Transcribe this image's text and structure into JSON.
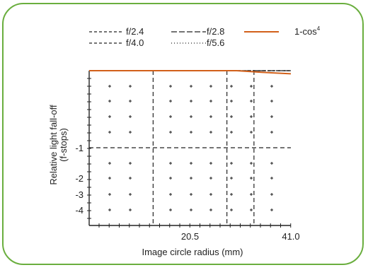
{
  "chart_data": {
    "type": "line",
    "title": "",
    "xlabel": "Image circle radius (mm)",
    "ylabel": "Relative light fall-off\n(f-stops)",
    "xlim": [
      0,
      41.0
    ],
    "ylim": [
      -5,
      0
    ],
    "x_ticks": [
      20.5,
      41.0
    ],
    "x_tick_labels": [
      "20.5",
      "41.0"
    ],
    "y_ticks": [
      -1,
      -2,
      -3,
      -4
    ],
    "y_tick_labels": [
      "-1",
      "-2",
      "-3",
      "-4"
    ],
    "grid": "dashed vertical lines at 13.0, 28.0, 33.5 mm and a dashed horizontal line at -1.0 f-stop; dotted plus-sign grid",
    "legend_position": "top",
    "series": [
      {
        "name": "f/2.4",
        "style": "dashed",
        "color": "#222222",
        "x": [
          0,
          5,
          10,
          15,
          20.5,
          25,
          30,
          35,
          41.0
        ],
        "y": [
          0,
          0,
          0,
          0,
          0,
          0,
          0,
          0,
          0
        ]
      },
      {
        "name": "f/2.8",
        "style": "long-dash",
        "color": "#222222",
        "x": [
          0,
          5,
          10,
          15,
          20.5,
          25,
          30,
          35,
          41.0
        ],
        "y": [
          0,
          0,
          0,
          0,
          0,
          0,
          0,
          0,
          0
        ]
      },
      {
        "name": "f/4.0",
        "style": "dashed",
        "color": "#222222",
        "x": [
          0,
          5,
          10,
          15,
          20.5,
          25,
          30,
          35,
          41.0
        ],
        "y": [
          0,
          0,
          0,
          0,
          0,
          0,
          0,
          0,
          0
        ]
      },
      {
        "name": "f/5.6",
        "style": "dotted",
        "color": "#222222",
        "x": [
          0,
          5,
          10,
          15,
          20.5,
          25,
          30,
          35,
          41.0
        ],
        "y": [
          0,
          0,
          0,
          0,
          0,
          0,
          0,
          0,
          0
        ]
      },
      {
        "name": "1-cos⁴",
        "style": "solid",
        "color": "#d2601a",
        "x": [
          0,
          5,
          10,
          15,
          20.5,
          25,
          30,
          35,
          41.0
        ],
        "y": [
          0,
          0,
          0,
          0,
          0,
          0,
          0,
          -0.02,
          -0.04
        ]
      }
    ]
  },
  "legend": [
    {
      "label": "f/2.4",
      "style": "dashed",
      "color": "#222222"
    },
    {
      "label": "f/2.8",
      "style": "long-dash",
      "color": "#222222"
    },
    {
      "label": "1-cos",
      "sup": "4",
      "style": "solid",
      "color": "#d2601a"
    },
    {
      "label": "f/4.0",
      "style": "dashed",
      "color": "#222222"
    },
    {
      "label": "f/5.6",
      "style": "dotted",
      "color": "#222222"
    }
  ],
  "colors": {
    "frame_border": "#6aae3e",
    "accent_line": "#d2601a",
    "ink": "#222222"
  }
}
